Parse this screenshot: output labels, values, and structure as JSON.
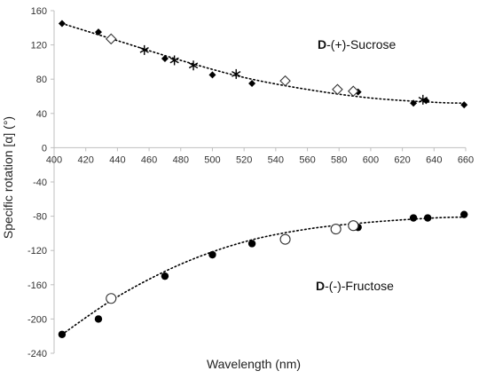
{
  "chart_data": {
    "type": "scatter",
    "xlabel": "Wavelength (nm)",
    "ylabel": "Specific rotation [α] (°)",
    "xlim": [
      400,
      660
    ],
    "ylim": [
      -240,
      160
    ],
    "x_ticks": [
      400,
      420,
      440,
      460,
      480,
      500,
      520,
      540,
      560,
      580,
      600,
      620,
      640,
      660
    ],
    "y_ticks": [
      160,
      120,
      80,
      40,
      0,
      -40,
      -80,
      -120,
      -160,
      -200,
      -240
    ],
    "grid": false,
    "annotations": [
      {
        "prefix": "D",
        "text": "-(+)-Sucrose"
      },
      {
        "prefix": "D",
        "text": "-(-)-Fructose"
      }
    ],
    "series": [
      {
        "marker": "filled-diamond",
        "x": [
          405,
          428,
          470,
          500,
          525,
          592,
          627,
          635,
          659
        ],
        "y": [
          145,
          135,
          104,
          85,
          75,
          65,
          52,
          55,
          50
        ]
      },
      {
        "marker": "open-diamond",
        "x": [
          436,
          546,
          579,
          589
        ],
        "y": [
          127,
          78,
          68,
          66
        ]
      },
      {
        "marker": "asterisk",
        "x": [
          457,
          476,
          488,
          515,
          633
        ],
        "y": [
          114,
          102,
          96,
          86,
          56
        ]
      },
      {
        "marker": "filled-circle",
        "x": [
          405,
          428,
          470,
          500,
          525,
          592,
          627,
          636,
          659
        ],
        "y": [
          -218,
          -200,
          -150,
          -125,
          -112,
          -93,
          -82,
          -82,
          -78
        ]
      },
      {
        "marker": "open-circle",
        "x": [
          436,
          546,
          578,
          589
        ],
        "y": [
          -176,
          -107,
          -95,
          -91
        ]
      }
    ],
    "trendlines": [
      {
        "style": "dotted",
        "x": [
          405,
          440,
          480,
          520,
          560,
          600,
          640,
          660
        ],
        "y": [
          145,
          125,
          102,
          82,
          68,
          58,
          53,
          52
        ]
      },
      {
        "style": "dotted",
        "x": [
          405,
          440,
          480,
          520,
          560,
          600,
          640,
          660
        ],
        "y": [
          -218,
          -174,
          -136,
          -110,
          -95,
          -87,
          -82,
          -81
        ]
      }
    ]
  }
}
